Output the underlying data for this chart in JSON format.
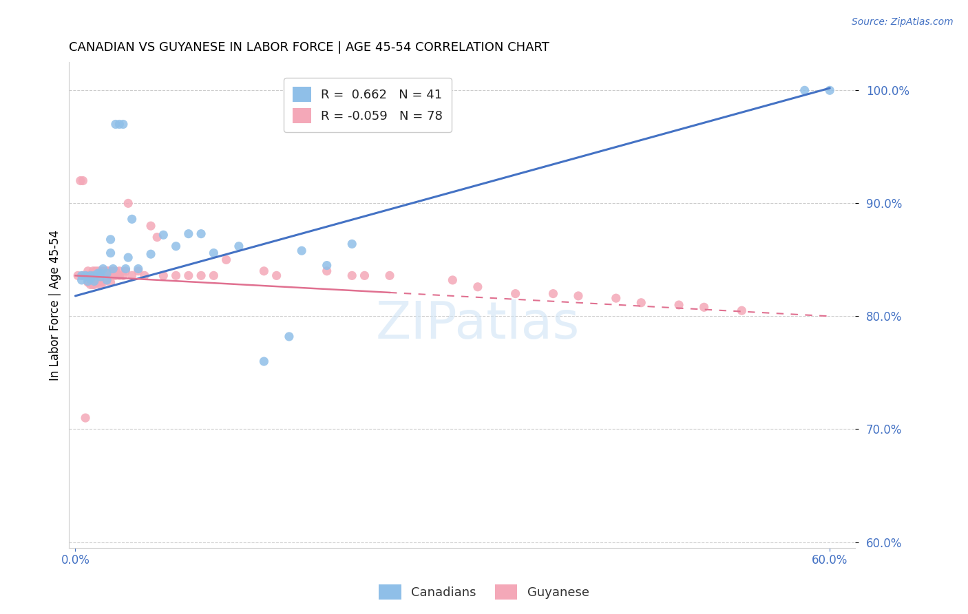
{
  "title": "CANADIAN VS GUYANESE IN LABOR FORCE | AGE 45-54 CORRELATION CHART",
  "source": "Source: ZipAtlas.com",
  "ylabel": "In Labor Force | Age 45-54",
  "xlim": [
    -0.005,
    0.62
  ],
  "ylim": [
    0.595,
    1.025
  ],
  "ytick_labels": [
    "60.0%",
    "70.0%",
    "80.0%",
    "90.0%",
    "100.0%"
  ],
  "ytick_values": [
    0.6,
    0.7,
    0.8,
    0.9,
    1.0
  ],
  "xtick_labels": [
    "0.0%",
    "60.0%"
  ],
  "xtick_values": [
    0.0,
    0.6
  ],
  "legend_R_canadian": " 0.662",
  "legend_N_canadian": "41",
  "legend_R_guyanese": "-0.059",
  "legend_N_guyanese": "78",
  "canadian_color": "#8fbfe8",
  "guyanese_color": "#f4a8b8",
  "canadian_line_color": "#4472C4",
  "guyanese_line_color": "#e07090",
  "watermark": "ZIPatlas",
  "canadians_x": [
    0.005,
    0.005,
    0.008,
    0.01,
    0.01,
    0.012,
    0.012,
    0.015,
    0.015,
    0.018,
    0.02,
    0.02,
    0.022,
    0.025,
    0.025,
    0.028,
    0.028,
    0.03,
    0.032,
    0.035,
    0.038,
    0.04,
    0.042,
    0.045,
    0.05,
    0.06,
    0.07,
    0.08,
    0.09,
    0.1,
    0.11,
    0.13,
    0.15,
    0.17,
    0.18,
    0.2,
    0.22,
    0.25,
    0.26,
    0.58,
    0.6
  ],
  "canadians_y": [
    0.836,
    0.832,
    0.836,
    0.835,
    0.831,
    0.836,
    0.833,
    0.836,
    0.831,
    0.838,
    0.838,
    0.835,
    0.842,
    0.838,
    0.832,
    0.868,
    0.856,
    0.842,
    0.97,
    0.97,
    0.97,
    0.842,
    0.852,
    0.886,
    0.842,
    0.855,
    0.872,
    0.862,
    0.873,
    0.873,
    0.856,
    0.862,
    0.76,
    0.782,
    0.858,
    0.845,
    0.864,
    1.0,
    1.0,
    1.0,
    1.0
  ],
  "guyanese_x": [
    0.002,
    0.004,
    0.006,
    0.006,
    0.008,
    0.01,
    0.01,
    0.01,
    0.012,
    0.012,
    0.012,
    0.014,
    0.014,
    0.014,
    0.015,
    0.015,
    0.015,
    0.016,
    0.016,
    0.017,
    0.017,
    0.018,
    0.018,
    0.018,
    0.018,
    0.019,
    0.02,
    0.02,
    0.02,
    0.02,
    0.02,
    0.022,
    0.022,
    0.022,
    0.024,
    0.024,
    0.025,
    0.025,
    0.026,
    0.026,
    0.028,
    0.028,
    0.03,
    0.03,
    0.032,
    0.032,
    0.035,
    0.035,
    0.038,
    0.04,
    0.042,
    0.045,
    0.05,
    0.055,
    0.06,
    0.065,
    0.07,
    0.08,
    0.09,
    0.1,
    0.11,
    0.12,
    0.15,
    0.16,
    0.2,
    0.22,
    0.23,
    0.25,
    0.3,
    0.32,
    0.35,
    0.38,
    0.4,
    0.43,
    0.45,
    0.48,
    0.5,
    0.53
  ],
  "guyanese_y": [
    0.836,
    0.92,
    0.92,
    0.836,
    0.71,
    0.84,
    0.836,
    0.83,
    0.836,
    0.833,
    0.828,
    0.84,
    0.836,
    0.828,
    0.838,
    0.834,
    0.828,
    0.84,
    0.836,
    0.838,
    0.83,
    0.84,
    0.838,
    0.835,
    0.83,
    0.836,
    0.84,
    0.838,
    0.835,
    0.832,
    0.828,
    0.84,
    0.836,
    0.83,
    0.84,
    0.836,
    0.84,
    0.836,
    0.84,
    0.834,
    0.84,
    0.83,
    0.84,
    0.836,
    0.84,
    0.836,
    0.84,
    0.836,
    0.836,
    0.84,
    0.9,
    0.836,
    0.84,
    0.836,
    0.88,
    0.87,
    0.836,
    0.836,
    0.836,
    0.836,
    0.836,
    0.85,
    0.84,
    0.836,
    0.84,
    0.836,
    0.836,
    0.836,
    0.832,
    0.826,
    0.82,
    0.82,
    0.818,
    0.816,
    0.812,
    0.81,
    0.808,
    0.805
  ],
  "canadian_trendline_x": [
    0.0,
    0.6
  ],
  "canadian_trendline_y": [
    0.818,
    1.002
  ],
  "guyanese_trendline_x": [
    0.0,
    0.6
  ],
  "guyanese_trendline_y": [
    0.836,
    0.8
  ]
}
